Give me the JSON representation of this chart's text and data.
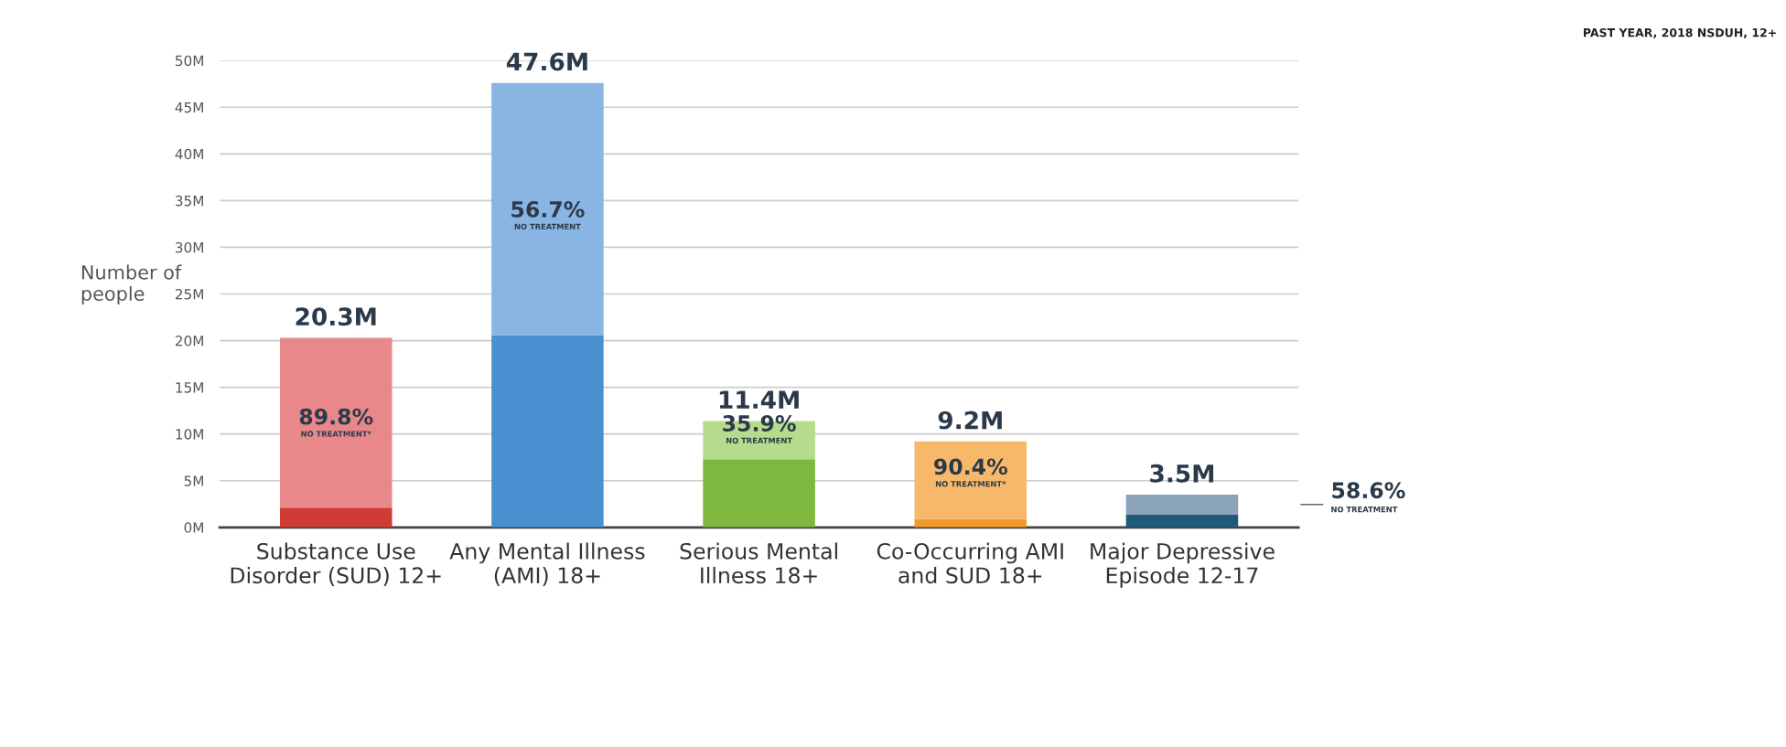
{
  "chart_data": {
    "type": "bar",
    "title": "PAST YEAR, 2018 NSDUH, 12+",
    "ylabel": "Number of\npeople",
    "categories": [
      "Substance Use\nDisorder (SUD) 12+",
      "Any Mental Illness\n(AMI) 18+",
      "Serious Mental\nIllness 18+",
      "Co-Occurring AMI\nand SUD 18+",
      "Major Depressive\nEpisode 12-17"
    ],
    "stacked": true,
    "series": [
      {
        "colors": [
          "#d03a35",
          "#4a8fcf",
          "#7fb83f",
          "#f39a2e",
          "#1f5a78"
        ],
        "values": [
          2.1,
          20.6,
          7.3,
          0.9,
          1.4
        ]
      },
      {
        "colors": [
          "#e8888a",
          "#88b5e2",
          "#b5dc8c",
          "#f7b86a",
          "#8aa3b8"
        ],
        "values": [
          18.2,
          27.0,
          4.1,
          8.3,
          2.1
        ]
      }
    ],
    "totals": [
      "20.3M",
      "47.6M",
      "11.4M",
      "9.2M",
      "3.5M"
    ],
    "annotations": [
      "89.8%\nNO TREATMENT*",
      "56.7%\nNO TREATMENT",
      "35.9%\nNO TREATMENT",
      "90.4%\nNO TREATMENT*",
      "58.6%\nNO TREATMENT"
    ],
    "ylim": [
      0,
      50
    ],
    "yticks": [
      {
        "value": 0,
        "label": "0M"
      },
      {
        "value": 5,
        "label": "5M"
      },
      {
        "value": 10,
        "label": "10M"
      },
      {
        "value": 15,
        "label": "15M"
      },
      {
        "value": 20,
        "label": "20M"
      },
      {
        "value": 25,
        "label": "25M"
      },
      {
        "value": 30,
        "label": "30M"
      },
      {
        "value": 35,
        "label": "35M"
      },
      {
        "value": 40,
        "label": "40M"
      },
      {
        "value": 45,
        "label": "45M"
      },
      {
        "value": 50,
        "label": "50M"
      }
    ],
    "grid": "y",
    "legend": false
  }
}
